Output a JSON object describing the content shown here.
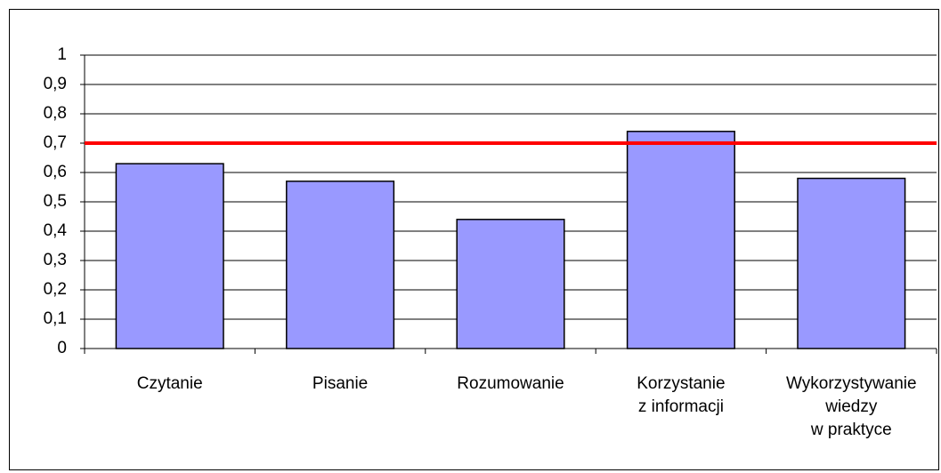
{
  "chart_data": {
    "type": "bar",
    "categories": [
      "Czytanie",
      "Pisanie",
      "Rozumowanie",
      "Korzystanie\nz informacji",
      "Wykorzystywanie\nwiedzy\nw praktyce"
    ],
    "values": [
      0.63,
      0.57,
      0.44,
      0.74,
      0.58
    ],
    "color": "#9999ff",
    "ylim": [
      0,
      1
    ],
    "yticks": [
      0,
      {
        "value": 0.1,
        "label": "0,1"
      },
      {
        "value": 0.2,
        "label": "0,2"
      },
      {
        "value": 0.3,
        "label": "0,3"
      },
      {
        "value": 0.4,
        "label": "0,4"
      },
      {
        "value": 0.5,
        "label": "0,5"
      },
      {
        "value": 0.6,
        "label": "0,6"
      },
      {
        "value": 0.7,
        "label": "0,7"
      },
      {
        "value": 0.8,
        "label": "0,8"
      },
      {
        "value": 0.9,
        "label": "0,9"
      },
      1
    ],
    "grid": true,
    "reference_line": {
      "value": 0.7,
      "color": "#ff0000"
    }
  }
}
